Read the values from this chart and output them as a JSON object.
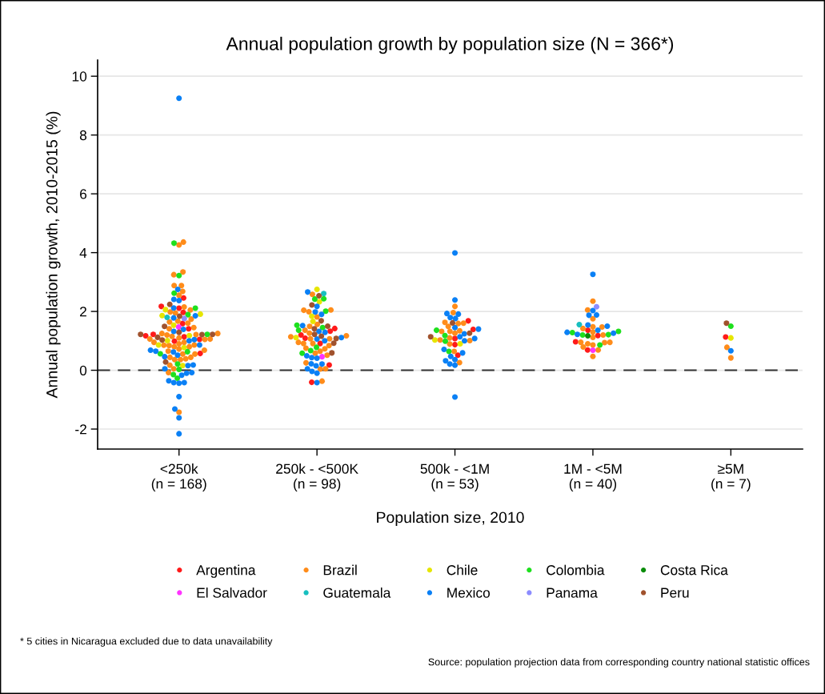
{
  "chart_data": {
    "type": "scatter",
    "title": "Annual population growth by population size (N = 366*)",
    "xlabel": "Population size, 2010",
    "ylabel": "Annual population growth, 2010-2015 (%)",
    "categories": [
      "<250k\n(n = 168)",
      "250k - <500K\n(n = 98)",
      "500k - <1M\n(n = 53)",
      "1M - <5M\n(n = 40)",
      "≥5M\n(n = 7)"
    ],
    "ylim": [
      -2.68,
      10.55
    ],
    "yticks": [
      -2,
      0,
      2,
      4,
      6,
      8,
      10
    ],
    "grid": "y",
    "legend": "bottom",
    "marker": "circle",
    "ref_lines": [
      {
        "axis": "y",
        "value": 0,
        "color": "#333333",
        "line_style": "dashed"
      }
    ],
    "annotations": [
      "* 5 cities in Nicaragua excluded due to data unavailability",
      "Source: population projection data from corresponding country national statistic offices"
    ],
    "series": [
      {
        "name": "Argentina",
        "color": "#ff1a1a",
        "x": [
          "<250k\n(n = 168)",
          "<250k\n(n = 168)",
          "<250k\n(n = 168)",
          "<250k\n(n = 168)",
          "<250k\n(n = 168)",
          "<250k\n(n = 168)",
          "<250k\n(n = 168)",
          "<250k\n(n = 168)",
          "<250k\n(n = 168)",
          "<250k\n(n = 168)",
          "<250k\n(n = 168)",
          "<250k\n(n = 168)",
          "250k - <500K\n(n = 98)",
          "250k - <500K\n(n = 98)",
          "250k - <500K\n(n = 98)",
          "250k - <500K\n(n = 98)",
          "250k - <500K\n(n = 98)",
          "250k - <500K\n(n = 98)",
          "250k - <500K\n(n = 98)",
          "500k - <1M\n(n = 53)",
          "500k - <1M\n(n = 53)",
          "500k - <1M\n(n = 53)",
          "500k - <1M\n(n = 53)",
          "500k - <1M\n(n = 53)",
          "1M - <5M\n(n = 40)",
          "1M - <5M\n(n = 40)",
          "1M - <5M\n(n = 40)",
          "1M - <5M\n(n = 40)",
          "≥5M\n(n = 7)"
        ],
        "values": [
          2.46,
          1.97,
          2.17,
          2.11,
          1.59,
          1.41,
          1.22,
          1.17,
          1.14,
          1.05,
          0.99,
          0.57,
          1.42,
          1.33,
          1.2,
          1.09,
          0.91,
          0.18,
          -0.41,
          1.68,
          1.39,
          1.08,
          0.87,
          0.51,
          1.36,
          1.18,
          0.97,
          0.69,
          1.13
        ]
      },
      {
        "name": "Brazil",
        "color": "#ff8c1a",
        "x": [
          "<250k\n(n = 168)",
          "<250k\n(n = 168)",
          "<250k\n(n = 168)",
          "<250k\n(n = 168)",
          "<250k\n(n = 168)",
          "<250k\n(n = 168)",
          "<250k\n(n = 168)",
          "<250k\n(n = 168)",
          "<250k\n(n = 168)",
          "<250k\n(n = 168)",
          "<250k\n(n = 168)",
          "<250k\n(n = 168)",
          "<250k\n(n = 168)",
          "<250k\n(n = 168)",
          "<250k\n(n = 168)",
          "<250k\n(n = 168)",
          "<250k\n(n = 168)",
          "<250k\n(n = 168)",
          "<250k\n(n = 168)",
          "<250k\n(n = 168)",
          "<250k\n(n = 168)",
          "<250k\n(n = 168)",
          "<250k\n(n = 168)",
          "<250k\n(n = 168)",
          "<250k\n(n = 168)",
          "<250k\n(n = 168)",
          "<250k\n(n = 168)",
          "<250k\n(n = 168)",
          "<250k\n(n = 168)",
          "<250k\n(n = 168)",
          "<250k\n(n = 168)",
          "<250k\n(n = 168)",
          "<250k\n(n = 168)",
          "<250k\n(n = 168)",
          "<250k\n(n = 168)",
          "<250k\n(n = 168)",
          "<250k\n(n = 168)",
          "<250k\n(n = 168)",
          "<250k\n(n = 168)",
          "<250k\n(n = 168)",
          "<250k\n(n = 168)",
          "<250k\n(n = 168)",
          "<250k\n(n = 168)",
          "<250k\n(n = 168)",
          "<250k\n(n = 168)",
          "<250k\n(n = 168)",
          "<250k\n(n = 168)",
          "<250k\n(n = 168)",
          "<250k\n(n = 168)",
          "250k - <500K\n(n = 98)",
          "250k - <500K\n(n = 98)",
          "250k - <500K\n(n = 98)",
          "250k - <500K\n(n = 98)",
          "250k - <500K\n(n = 98)",
          "250k - <500K\n(n = 98)",
          "250k - <500K\n(n = 98)",
          "250k - <500K\n(n = 98)",
          "250k - <500K\n(n = 98)",
          "250k - <500K\n(n = 98)",
          "250k - <500K\n(n = 98)",
          "250k - <500K\n(n = 98)",
          "250k - <500K\n(n = 98)",
          "250k - <500K\n(n = 98)",
          "250k - <500K\n(n = 98)",
          "250k - <500K\n(n = 98)",
          "250k - <500K\n(n = 98)",
          "250k - <500K\n(n = 98)",
          "250k - <500K\n(n = 98)",
          "250k - <500K\n(n = 98)",
          "250k - <500K\n(n = 98)",
          "250k - <500K\n(n = 98)",
          "250k - <500K\n(n = 98)",
          "250k - <500K\n(n = 98)",
          "250k - <500K\n(n = 98)",
          "250k - <500K\n(n = 98)",
          "500k - <1M\n(n = 53)",
          "500k - <1M\n(n = 53)",
          "500k - <1M\n(n = 53)",
          "500k - <1M\n(n = 53)",
          "500k - <1M\n(n = 53)",
          "500k - <1M\n(n = 53)",
          "500k - <1M\n(n = 53)",
          "500k - <1M\n(n = 53)",
          "500k - <1M\n(n = 53)",
          "500k - <1M\n(n = 53)",
          "500k - <1M\n(n = 53)",
          "500k - <1M\n(n = 53)",
          "500k - <1M\n(n = 53)",
          "500k - <1M\n(n = 53)",
          "500k - <1M\n(n = 53)",
          "500k - <1M\n(n = 53)",
          "1M - <5M\n(n = 40)",
          "1M - <5M\n(n = 40)",
          "1M - <5M\n(n = 40)",
          "1M - <5M\n(n = 40)",
          "1M - <5M\n(n = 40)",
          "1M - <5M\n(n = 40)",
          "1M - <5M\n(n = 40)",
          "1M - <5M\n(n = 40)",
          "1M - <5M\n(n = 40)",
          "1M - <5M\n(n = 40)",
          "1M - <5M\n(n = 40)",
          "1M - <5M\n(n = 40)",
          "1M - <5M\n(n = 40)",
          "1M - <5M\n(n = 40)",
          "1M - <5M\n(n = 40)",
          "1M - <5M\n(n = 40)",
          "1M - <5M\n(n = 40)",
          "≥5M\n(n = 7)",
          "≥5M\n(n = 7)"
        ],
        "values": [
          4.26,
          4.36,
          3.34,
          3.25,
          2.88,
          2.88,
          2.55,
          2.68,
          2.15,
          2.05,
          1.98,
          1.95,
          1.74,
          1.67,
          1.64,
          1.6,
          1.41,
          1.45,
          1.21,
          1.25,
          1.06,
          0.95,
          1.06,
          0.86,
          0.9,
          0.85,
          0.8,
          0.84,
          0.72,
          0.68,
          0.55,
          0.44,
          0.44,
          0.36,
          0.36,
          0.39,
          0.17,
          0.05,
          -0.08,
          -1.43,
          1.05,
          0.95,
          1.15,
          1.2,
          0.8,
          1.1,
          1.25,
          0.55,
          0.65,
          2.58,
          2.04,
          2.05,
          1.99,
          1.81,
          1.56,
          1.49,
          1.36,
          1.26,
          1.17,
          1.14,
          1.07,
          1.07,
          0.91,
          0.91,
          0.84,
          0.95,
          0.73,
          0.75,
          0.65,
          0.58,
          0.51,
          0.25,
          0.05,
          0.04,
          -0.37,
          2.17,
          1.96,
          1.63,
          1.6,
          1.59,
          1.49,
          1.32,
          1.26,
          1.34,
          1.32,
          1.03,
          1.1,
          1.01,
          0.89,
          0.64,
          0.26,
          2.35,
          2.05,
          1.75,
          1.42,
          1.47,
          1.48,
          1.3,
          1.2,
          1.12,
          0.9,
          0.79,
          0.95,
          0.95,
          0.86,
          0.94,
          0.69,
          0.47,
          0.78,
          0.42
        ]
      },
      {
        "name": "Chile",
        "color": "#e6e600",
        "x": [
          "<250k\n(n = 168)",
          "<250k\n(n = 168)",
          "<250k\n(n = 168)",
          "<250k\n(n = 168)",
          "<250k\n(n = 168)",
          "<250k\n(n = 168)",
          "<250k\n(n = 168)",
          "<250k\n(n = 168)",
          "<250k\n(n = 168)",
          "250k - <500K\n(n = 98)",
          "250k - <500K\n(n = 98)",
          "250k - <500K\n(n = 98)",
          "250k - <500K\n(n = 98)",
          "250k - <500K\n(n = 98)",
          "500k - <1M\n(n = 53)",
          "500k - <1M\n(n = 53)",
          "≥5M\n(n = 7)"
        ],
        "values": [
          2.06,
          1.91,
          1.86,
          1.53,
          1.18,
          1.01,
          0.86,
          0.77,
          0.16,
          2.75,
          2.33,
          1.84,
          1.66,
          1.11,
          0.9,
          1.03,
          1.1
        ]
      },
      {
        "name": "Colombia",
        "color": "#1ee01e",
        "x": [
          "<250k\n(n = 168)",
          "<250k\n(n = 168)",
          "<250k\n(n = 168)",
          "<250k\n(n = 168)",
          "<250k\n(n = 168)",
          "<250k\n(n = 168)",
          "<250k\n(n = 168)",
          "<250k\n(n = 168)",
          "<250k\n(n = 168)",
          "<250k\n(n = 168)",
          "<250k\n(n = 168)",
          "<250k\n(n = 168)",
          "250k - <500K\n(n = 98)",
          "250k - <500K\n(n = 98)",
          "250k - <500K\n(n = 98)",
          "250k - <500K\n(n = 98)",
          "250k - <500K\n(n = 98)",
          "250k - <500K\n(n = 98)",
          "250k - <500K\n(n = 98)",
          "250k - <500K\n(n = 98)",
          "250k - <500K\n(n = 98)",
          "500k - <1M\n(n = 53)",
          "500k - <1M\n(n = 53)",
          "500k - <1M\n(n = 53)",
          "500k - <1M\n(n = 53)",
          "1M - <5M\n(n = 40)",
          "1M - <5M\n(n = 40)",
          "1M - <5M\n(n = 40)",
          "1M - <5M\n(n = 40)",
          "1M - <5M\n(n = 40)",
          "≥5M\n(n = 7)"
        ],
        "values": [
          4.32,
          3.22,
          2.62,
          2.11,
          1.89,
          1.22,
          0.63,
          0.56,
          0.21,
          0.03,
          -0.15,
          -0.27,
          2.42,
          2.43,
          2.01,
          1.53,
          1.45,
          1.36,
          0.78,
          0.67,
          0.58,
          1.36,
          1.18,
          0.99,
          0.64,
          1.32,
          1.2,
          1.21,
          1.28,
          0.86,
          1.5
        ]
      },
      {
        "name": "Costa Rica",
        "color": "#0a8c0a",
        "x": [
          "1M - <5M\n(n = 40)"
        ],
        "values": [
          1.17
        ]
      },
      {
        "name": "El Salvador",
        "color": "#ff33ff",
        "x": [
          "<250k\n(n = 168)",
          "250k - <500K\n(n = 98)",
          "1M - <5M\n(n = 40)"
        ],
        "values": [
          1.47,
          0.46,
          0.68
        ]
      },
      {
        "name": "Guatemala",
        "color": "#17bfbf",
        "x": [
          "<250k\n(n = 168)",
          "250k - <500K\n(n = 98)",
          "1M - <5M\n(n = 40)"
        ],
        "values": [
          1.8,
          2.61,
          1.55
        ]
      },
      {
        "name": "Mexico",
        "color": "#0a80f5",
        "x": [
          "<250k\n(n = 168)",
          "<250k\n(n = 168)",
          "<250k\n(n = 168)",
          "<250k\n(n = 168)",
          "<250k\n(n = 168)",
          "<250k\n(n = 168)",
          "<250k\n(n = 168)",
          "<250k\n(n = 168)",
          "<250k\n(n = 168)",
          "<250k\n(n = 168)",
          "<250k\n(n = 168)",
          "<250k\n(n = 168)",
          "<250k\n(n = 168)",
          "<250k\n(n = 168)",
          "<250k\n(n = 168)",
          "<250k\n(n = 168)",
          "<250k\n(n = 168)",
          "<250k\n(n = 168)",
          "<250k\n(n = 168)",
          "<250k\n(n = 168)",
          "<250k\n(n = 168)",
          "<250k\n(n = 168)",
          "<250k\n(n = 168)",
          "<250k\n(n = 168)",
          "<250k\n(n = 168)",
          "<250k\n(n = 168)",
          "<250k\n(n = 168)",
          "<250k\n(n = 168)",
          "<250k\n(n = 168)",
          "<250k\n(n = 168)",
          "<250k\n(n = 168)",
          "250k - <500K\n(n = 98)",
          "250k - <500K\n(n = 98)",
          "250k - <500K\n(n = 98)",
          "250k - <500K\n(n = 98)",
          "250k - <500K\n(n = 98)",
          "250k - <500K\n(n = 98)",
          "250k - <500K\n(n = 98)",
          "250k - <500K\n(n = 98)",
          "250k - <500K\n(n = 98)",
          "250k - <500K\n(n = 98)",
          "250k - <500K\n(n = 98)",
          "250k - <500K\n(n = 98)",
          "250k - <500K\n(n = 98)",
          "250k - <500K\n(n = 98)",
          "250k - <500K\n(n = 98)",
          "250k - <500K\n(n = 98)",
          "250k - <500K\n(n = 98)",
          "250k - <500K\n(n = 98)",
          "250k - <500K\n(n = 98)",
          "250k - <500K\n(n = 98)",
          "500k - <1M\n(n = 53)",
          "500k - <1M\n(n = 53)",
          "500k - <1M\n(n = 53)",
          "500k - <1M\n(n = 53)",
          "500k - <1M\n(n = 53)",
          "500k - <1M\n(n = 53)",
          "500k - <1M\n(n = 53)",
          "500k - <1M\n(n = 53)",
          "500k - <1M\n(n = 53)",
          "500k - <1M\n(n = 53)",
          "500k - <1M\n(n = 53)",
          "500k - <1M\n(n = 53)",
          "500k - <1M\n(n = 53)",
          "500k - <1M\n(n = 53)",
          "500k - <1M\n(n = 53)",
          "500k - <1M\n(n = 53)",
          "500k - <1M\n(n = 53)",
          "500k - <1M\n(n = 53)",
          "500k - <1M\n(n = 53)",
          "500k - <1M\n(n = 53)",
          "1M - <5M\n(n = 40)",
          "1M - <5M\n(n = 40)",
          "1M - <5M\n(n = 40)",
          "1M - <5M\n(n = 40)",
          "1M - <5M\n(n = 40)",
          "1M - <5M\n(n = 40)",
          "1M - <5M\n(n = 40)",
          "1M - <5M\n(n = 40)",
          "1M - <5M\n(n = 40)",
          "1M - <5M\n(n = 40)",
          "≥5M\n(n = 7)"
        ],
        "values": [
          9.25,
          2.75,
          2.41,
          2.37,
          2.12,
          1.78,
          1.85,
          1.39,
          1.32,
          1.04,
          1.0,
          0.86,
          0.62,
          0.65,
          0.68,
          0.51,
          0.46,
          0.18,
          0.05,
          0.16,
          -0.08,
          -0.1,
          -0.17,
          -0.36,
          -0.42,
          -0.42,
          -0.44,
          -0.9,
          -1.32,
          -1.62,
          -2.16,
          2.66,
          2.17,
          1.98,
          1.9,
          1.52,
          1.29,
          1.32,
          1.11,
          1.06,
          1.0,
          0.49,
          0.43,
          0.41,
          0.21,
          0.22,
          0.15,
          0.05,
          -0.04,
          -0.1,
          -0.42,
          3.99,
          2.39,
          1.79,
          1.93,
          1.91,
          1.76,
          1.45,
          1.4,
          1.24,
          1.14,
          1.08,
          1.0,
          0.71,
          0.47,
          0.59,
          0.32,
          0.36,
          0.17,
          0.21,
          -0.91,
          3.26,
          2.03,
          1.87,
          1.88,
          1.5,
          1.54,
          1.36,
          1.26,
          1.29,
          1.22,
          0.66
        ]
      },
      {
        "name": "Panama",
        "color": "#8c8cff",
        "x": [
          "<250k\n(n = 168)",
          "1M - <5M\n(n = 40)"
        ],
        "values": [
          1.76,
          2.16
        ]
      },
      {
        "name": "Peru",
        "color": "#a0522d",
        "x": [
          "<250k\n(n = 168)",
          "<250k\n(n = 168)",
          "<250k\n(n = 168)",
          "<250k\n(n = 168)",
          "<250k\n(n = 168)",
          "<250k\n(n = 168)",
          "<250k\n(n = 168)",
          "<250k\n(n = 168)",
          "<250k\n(n = 168)",
          "<250k\n(n = 168)",
          "250k - <500K\n(n = 98)",
          "250k - <500K\n(n = 98)",
          "250k - <500K\n(n = 98)",
          "250k - <500K\n(n = 98)",
          "250k - <500K\n(n = 98)",
          "250k - <500K\n(n = 98)",
          "250k - <500K\n(n = 98)",
          "250k - <500K\n(n = 98)",
          "250k - <500K\n(n = 98)",
          "250k - <500K\n(n = 98)",
          "500k - <1M\n(n = 53)",
          "500k - <1M\n(n = 53)",
          "500k - <1M\n(n = 53)",
          "≥5M\n(n = 7)"
        ],
        "values": [
          2.24,
          1.84,
          1.49,
          1.21,
          1.03,
          1.29,
          1.22,
          0.28,
          1.22,
          1.12,
          2.53,
          2.22,
          1.68,
          1.5,
          1.41,
          1.22,
          1.16,
          1.08,
          0.92,
          0.59,
          1.61,
          1.26,
          1.14,
          1.6
        ]
      }
    ]
  }
}
